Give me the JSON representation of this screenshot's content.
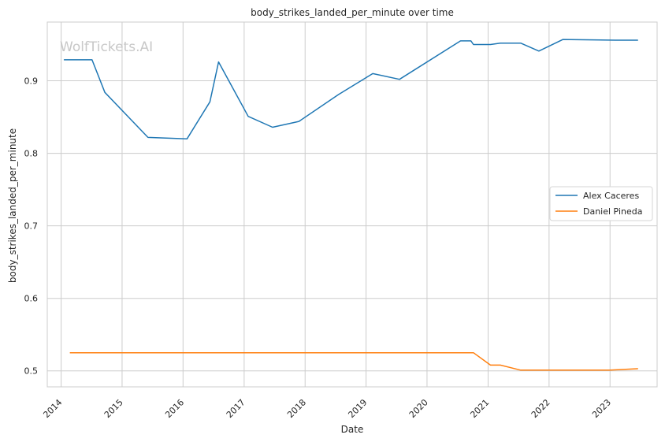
{
  "watermark": "WolfTickets.AI",
  "chart_data": {
    "type": "line",
    "title": "body_strikes_landed_per_minute over time",
    "xlabel": "Date",
    "ylabel": "body_strikes_landed_per_minute",
    "x_ticks": [
      "2014",
      "2015",
      "2016",
      "2017",
      "2018",
      "2019",
      "2020",
      "2021",
      "2022",
      "2023"
    ],
    "y_ticks": [
      0.5,
      0.6,
      0.7,
      0.8,
      0.9
    ],
    "xlim": [
      "2013-10-10",
      "2023-10-10"
    ],
    "ylim": [
      0.478,
      0.981
    ],
    "grid": true,
    "legend_position": "center-right",
    "series": [
      {
        "name": "Alex Caceres",
        "color": "#1f77b4",
        "points": [
          {
            "x": "2014-01-20",
            "y": 0.929
          },
          {
            "x": "2014-07-05",
            "y": 0.929
          },
          {
            "x": "2014-09-20",
            "y": 0.884
          },
          {
            "x": "2015-06-05",
            "y": 0.822
          },
          {
            "x": "2016-01-25",
            "y": 0.82
          },
          {
            "x": "2016-06-10",
            "y": 0.871
          },
          {
            "x": "2016-08-01",
            "y": 0.926
          },
          {
            "x": "2017-01-25",
            "y": 0.851
          },
          {
            "x": "2017-06-20",
            "y": 0.836
          },
          {
            "x": "2017-11-25",
            "y": 0.844
          },
          {
            "x": "2018-07-20",
            "y": 0.881
          },
          {
            "x": "2019-02-10",
            "y": 0.91
          },
          {
            "x": "2019-07-20",
            "y": 0.902
          },
          {
            "x": "2020-07-20",
            "y": 0.955
          },
          {
            "x": "2020-09-20",
            "y": 0.955
          },
          {
            "x": "2020-10-05",
            "y": 0.95
          },
          {
            "x": "2020-12-10",
            "y": 0.95
          },
          {
            "x": "2021-01-15",
            "y": 0.95
          },
          {
            "x": "2021-03-15",
            "y": 0.952
          },
          {
            "x": "2021-07-15",
            "y": 0.952
          },
          {
            "x": "2021-11-01",
            "y": 0.941
          },
          {
            "x": "2022-03-25",
            "y": 0.957
          },
          {
            "x": "2023-02-01",
            "y": 0.956
          },
          {
            "x": "2023-06-15",
            "y": 0.956
          }
        ]
      },
      {
        "name": "Daniel Pineda",
        "color": "#ff7f0e",
        "points": [
          {
            "x": "2014-02-25",
            "y": 0.525
          },
          {
            "x": "2020-10-05",
            "y": 0.525
          },
          {
            "x": "2021-01-15",
            "y": 0.508
          },
          {
            "x": "2021-03-15",
            "y": 0.508
          },
          {
            "x": "2021-07-15",
            "y": 0.501
          },
          {
            "x": "2022-01-20",
            "y": 0.501
          },
          {
            "x": "2023-01-01",
            "y": 0.501
          },
          {
            "x": "2023-06-15",
            "y": 0.503
          }
        ]
      }
    ]
  }
}
